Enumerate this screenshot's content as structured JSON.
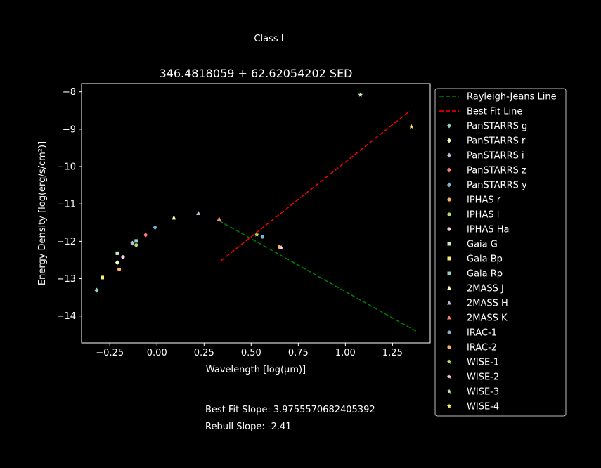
{
  "figure": {
    "suptitle": "Class I",
    "footer_lines": [
      "Best Fit Slope: 3.9755570682405392",
      "Rebull Slope: -2.41"
    ]
  },
  "chart_data": {
    "type": "scatter",
    "title": "346.4818059 + 62.62054202 SED",
    "xlabel": "Wavelength [log(μm)]",
    "ylabel": "Energy Density [log(erg/s/cm²)]",
    "xlim": [
      -0.4,
      1.45
    ],
    "ylim": [
      -14.72,
      -7.78
    ],
    "x_ticks": [
      -0.25,
      0.0,
      0.25,
      0.5,
      0.75,
      1.0,
      1.25
    ],
    "x_tick_labels": [
      "−0.25",
      "0.00",
      "0.25",
      "0.50",
      "0.75",
      "1.00",
      "1.25"
    ],
    "y_ticks": [
      -8,
      -9,
      -10,
      -11,
      -12,
      -13,
      -14
    ],
    "y_tick_labels": [
      "−8",
      "−9",
      "−10",
      "−11",
      "−12",
      "−13",
      "−14"
    ],
    "grid": false,
    "legend_position": "outside-right",
    "lines": [
      {
        "name": "Rayleigh-Jeans Line",
        "color": "#008000",
        "dash": "dashed",
        "x": [
          0.33,
          1.38
        ],
        "y": [
          -11.45,
          -14.42
        ]
      },
      {
        "name": "Best Fit Line",
        "color": "#ff0000",
        "dash": "dashed",
        "x": [
          0.34,
          1.34
        ],
        "y": [
          -12.52,
          -8.52
        ]
      }
    ],
    "series": [
      {
        "name": "PanSTARRS g",
        "marker": "diamond",
        "color": "#8dd3c7",
        "x": [
          -0.32
        ],
        "y": [
          -13.31
        ]
      },
      {
        "name": "PanSTARRS r",
        "marker": "diamond",
        "color": "#ffffb3",
        "x": [
          -0.21
        ],
        "y": [
          -12.57
        ]
      },
      {
        "name": "PanSTARRS i",
        "marker": "diamond",
        "color": "#bebada",
        "x": [
          -0.13
        ],
        "y": [
          -12.05
        ]
      },
      {
        "name": "PanSTARRS z",
        "marker": "diamond",
        "color": "#fb8072",
        "x": [
          -0.06
        ],
        "y": [
          -11.83
        ]
      },
      {
        "name": "PanSTARRS y",
        "marker": "diamond",
        "color": "#80b1d3",
        "x": [
          -0.01
        ],
        "y": [
          -11.63
        ]
      },
      {
        "name": "IPHAS r",
        "marker": "circle",
        "color": "#fdb462",
        "x": [
          -0.2
        ],
        "y": [
          -12.75
        ]
      },
      {
        "name": "IPHAS i",
        "marker": "circle",
        "color": "#b3de69",
        "x": [
          -0.11
        ],
        "y": [
          -12.1
        ]
      },
      {
        "name": "IPHAS Ha",
        "marker": "circle",
        "color": "#fccde5",
        "x": [
          -0.18
        ],
        "y": [
          -12.42
        ]
      },
      {
        "name": "Gaia G",
        "marker": "square",
        "color": "#ccebc5",
        "x": [
          -0.21
        ],
        "y": [
          -12.32
        ]
      },
      {
        "name": "Gaia Bp",
        "marker": "square",
        "color": "#ffed6f",
        "x": [
          -0.29
        ],
        "y": [
          -12.97
        ]
      },
      {
        "name": "Gaia Rp",
        "marker": "square",
        "color": "#8dd3c7",
        "x": [
          -0.11
        ],
        "y": [
          -11.99
        ]
      },
      {
        "name": "2MASS J",
        "marker": "triangle",
        "color": "#ffffb3",
        "x": [
          0.09
        ],
        "y": [
          -11.37
        ]
      },
      {
        "name": "2MASS H",
        "marker": "triangle",
        "color": "#bebada",
        "x": [
          0.22
        ],
        "y": [
          -11.25
        ]
      },
      {
        "name": "2MASS K",
        "marker": "triangle",
        "color": "#fb8072",
        "x": [
          0.33
        ],
        "y": [
          -11.4
        ]
      },
      {
        "name": "IRAC-1",
        "marker": "circle",
        "color": "#80b1d3",
        "x": [
          0.56
        ],
        "y": [
          -11.88
        ]
      },
      {
        "name": "IRAC-2",
        "marker": "circle",
        "color": "#fdb462",
        "x": [
          0.65
        ],
        "y": [
          -12.15
        ]
      },
      {
        "name": "WISE-1",
        "marker": "star",
        "color": "#b3de69",
        "x": [
          0.53
        ],
        "y": [
          -11.82
        ]
      },
      {
        "name": "WISE-2",
        "marker": "star",
        "color": "#fccde5",
        "x": [
          0.66
        ],
        "y": [
          -12.17
        ]
      },
      {
        "name": "WISE-3",
        "marker": "star",
        "color": "#ccebc5",
        "x": [
          1.08
        ],
        "y": [
          -8.08
        ]
      },
      {
        "name": "WISE-4",
        "marker": "star",
        "color": "#ffed6f",
        "x": [
          1.35
        ],
        "y": [
          -8.93
        ]
      }
    ]
  }
}
